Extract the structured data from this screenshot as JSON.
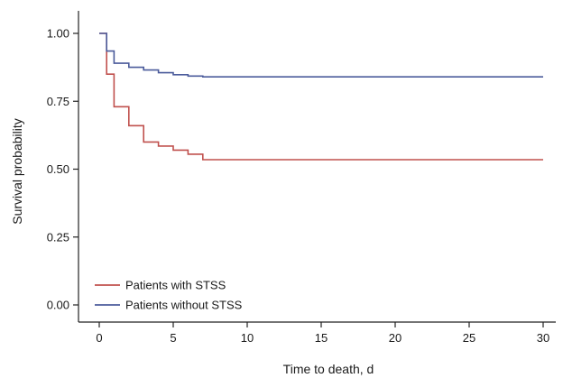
{
  "chart_data": {
    "type": "line",
    "subtype": "kaplan-meier step",
    "title": "",
    "xlabel": "Time to death, d",
    "ylabel": "Survival probability",
    "xlim": [
      0,
      30
    ],
    "ylim": [
      0,
      1
    ],
    "x_ticks": [
      0,
      5,
      10,
      15,
      20,
      25,
      30
    ],
    "y_ticks": [
      "0.00",
      "0.25",
      "0.50",
      "0.75",
      "1.00"
    ],
    "grid": false,
    "legend_position": "bottom-left",
    "series": [
      {
        "name": "Patients with STSS",
        "color": "#c0504d",
        "steps": [
          [
            0,
            1.0
          ],
          [
            0.5,
            0.85
          ],
          [
            1,
            0.73
          ],
          [
            2,
            0.66
          ],
          [
            3,
            0.6
          ],
          [
            4,
            0.585
          ],
          [
            5,
            0.57
          ],
          [
            6,
            0.555
          ],
          [
            7,
            0.535
          ],
          [
            30,
            0.535
          ]
        ]
      },
      {
        "name": "Patients without STSS",
        "color": "#4b5b9b",
        "steps": [
          [
            0,
            1.0
          ],
          [
            0.5,
            0.935
          ],
          [
            1,
            0.89
          ],
          [
            2,
            0.875
          ],
          [
            3,
            0.865
          ],
          [
            4,
            0.855
          ],
          [
            5,
            0.848
          ],
          [
            6,
            0.843
          ],
          [
            7,
            0.84
          ],
          [
            30,
            0.84
          ]
        ]
      }
    ]
  }
}
